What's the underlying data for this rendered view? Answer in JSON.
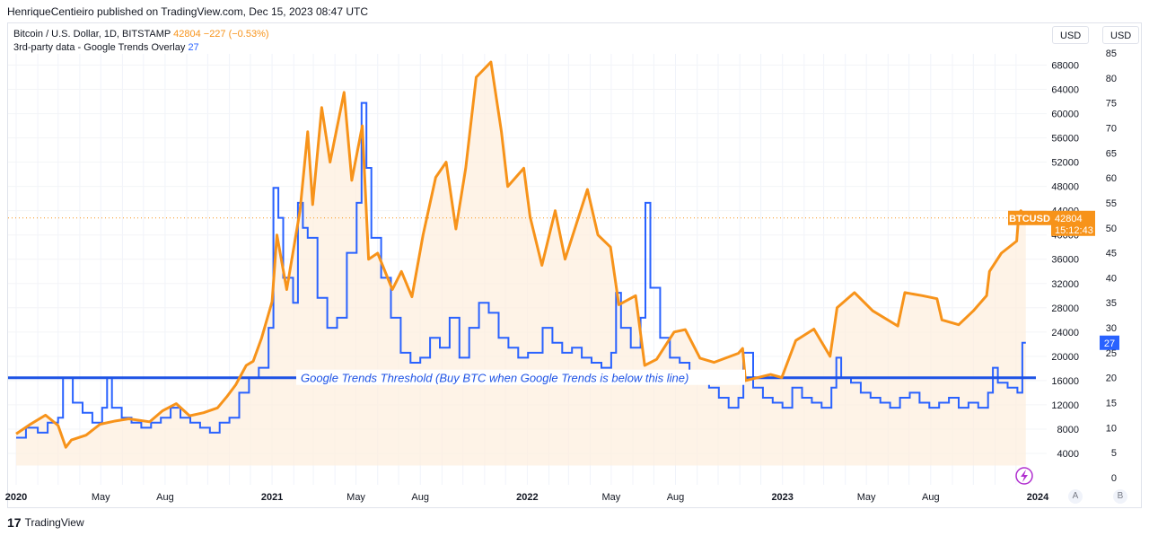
{
  "header": {
    "published": "HenriqueCentieiro published on TradingView.com, Dec 15, 2023 08:47 UTC"
  },
  "legend": {
    "main_prefix": "Bitcoin / U.S. Dollar, 1D, BITSTAMP",
    "main_price": "42804",
    "main_change": "−227 (−0.53%)",
    "overlay_name": "3rd-party data - Google Trends Overlay",
    "overlay_value": "27"
  },
  "units": {
    "left": "USD",
    "right": "USD"
  },
  "price_tag": {
    "symbol": "BTCUSD",
    "price": "42804",
    "countdown": "15:12:43"
  },
  "trends_tag": "27",
  "annotation": "Google Trends Threshold (Buy BTC when Google Trends is below this line)",
  "footer": {
    "brand": "TradingView"
  },
  "axis_buttons": {
    "a": "A",
    "b": "B"
  },
  "colors": {
    "btc": "#f7931a",
    "trends": "#2962ff",
    "fill": "#fdeedd"
  },
  "chart_data": {
    "type": "line",
    "price_axis": {
      "range": [
        0,
        70000
      ],
      "ticks": [
        "4000",
        "8000",
        "12000",
        "16000",
        "20000",
        "24000",
        "28000",
        "32000",
        "36000",
        "40000",
        "44000",
        "48000",
        "52000",
        "56000",
        "60000",
        "64000",
        "68000"
      ]
    },
    "trends_axis": {
      "range": [
        0,
        85
      ],
      "ticks": [
        "0",
        "5",
        "10",
        "15",
        "20",
        "25",
        "30",
        "35",
        "40",
        "45",
        "50",
        "55",
        "60",
        "65",
        "70",
        "75",
        "80",
        "85"
      ]
    },
    "x_labels": [
      "2020",
      "May",
      "Aug",
      "2021",
      "May",
      "Aug",
      "2022",
      "May",
      "Aug",
      "2023",
      "May",
      "Aug",
      "2024"
    ],
    "threshold": 20,
    "series": [
      {
        "name": "BTCUSD",
        "values": [
          [
            "2020-01-01",
            7200
          ],
          [
            "2020-01-20",
            8700
          ],
          [
            "2020-02-12",
            10300
          ],
          [
            "2020-03-01",
            8600
          ],
          [
            "2020-03-12",
            5000
          ],
          [
            "2020-03-20",
            6200
          ],
          [
            "2020-04-10",
            7000
          ],
          [
            "2020-04-30",
            8800
          ],
          [
            "2020-05-20",
            9300
          ],
          [
            "2020-06-10",
            9700
          ],
          [
            "2020-07-10",
            9200
          ],
          [
            "2020-07-28",
            11000
          ],
          [
            "2020-08-17",
            12200
          ],
          [
            "2020-09-05",
            10200
          ],
          [
            "2020-09-25",
            10700
          ],
          [
            "2020-10-15",
            11500
          ],
          [
            "2020-10-28",
            13300
          ],
          [
            "2020-11-10",
            15300
          ],
          [
            "2020-11-25",
            18500
          ],
          [
            "2020-12-05",
            19200
          ],
          [
            "2020-12-17",
            23000
          ],
          [
            "2021-01-01",
            29000
          ],
          [
            "2021-01-08",
            40000
          ],
          [
            "2021-01-22",
            31000
          ],
          [
            "2021-02-10",
            44000
          ],
          [
            "2021-02-21",
            57000
          ],
          [
            "2021-02-28",
            45000
          ],
          [
            "2021-03-13",
            61000
          ],
          [
            "2021-03-25",
            52000
          ],
          [
            "2021-04-14",
            63500
          ],
          [
            "2021-04-25",
            49000
          ],
          [
            "2021-05-10",
            58000
          ],
          [
            "2021-05-19",
            36000
          ],
          [
            "2021-06-01",
            37000
          ],
          [
            "2021-06-22",
            31000
          ],
          [
            "2021-07-05",
            34000
          ],
          [
            "2021-07-20",
            29800
          ],
          [
            "2021-08-05",
            40000
          ],
          [
            "2021-08-23",
            49500
          ],
          [
            "2021-09-07",
            52000
          ],
          [
            "2021-09-21",
            41000
          ],
          [
            "2021-10-05",
            51000
          ],
          [
            "2021-10-20",
            66000
          ],
          [
            "2021-11-10",
            68500
          ],
          [
            "2021-11-25",
            57000
          ],
          [
            "2021-12-04",
            48000
          ],
          [
            "2021-12-27",
            51000
          ],
          [
            "2022-01-05",
            43000
          ],
          [
            "2022-01-22",
            35000
          ],
          [
            "2022-02-10",
            44000
          ],
          [
            "2022-02-24",
            36000
          ],
          [
            "2022-03-28",
            47500
          ],
          [
            "2022-04-12",
            40000
          ],
          [
            "2022-04-30",
            38000
          ],
          [
            "2022-05-12",
            28500
          ],
          [
            "2022-06-05",
            30000
          ],
          [
            "2022-06-18",
            18500
          ],
          [
            "2022-07-05",
            19500
          ],
          [
            "2022-07-30",
            24000
          ],
          [
            "2022-08-15",
            24400
          ],
          [
            "2022-09-05",
            19700
          ],
          [
            "2022-09-25",
            19000
          ],
          [
            "2022-10-30",
            20500
          ],
          [
            "2022-11-05",
            21300
          ],
          [
            "2022-11-09",
            16000
          ],
          [
            "2022-12-15",
            17000
          ],
          [
            "2022-12-31",
            16500
          ],
          [
            "2023-01-20",
            22600
          ],
          [
            "2023-02-15",
            24500
          ],
          [
            "2023-03-10",
            20000
          ],
          [
            "2023-03-20",
            28000
          ],
          [
            "2023-04-14",
            30500
          ],
          [
            "2023-05-10",
            27500
          ],
          [
            "2023-06-15",
            25000
          ],
          [
            "2023-06-25",
            30500
          ],
          [
            "2023-07-20",
            30000
          ],
          [
            "2023-08-10",
            29500
          ],
          [
            "2023-08-17",
            26000
          ],
          [
            "2023-09-10",
            25200
          ],
          [
            "2023-10-01",
            27500
          ],
          [
            "2023-10-20",
            30000
          ],
          [
            "2023-10-24",
            34000
          ],
          [
            "2023-11-10",
            37000
          ],
          [
            "2023-12-02",
            39000
          ],
          [
            "2023-12-05",
            43500
          ],
          [
            "2023-12-08",
            44000
          ],
          [
            "2023-12-15",
            42804
          ]
        ]
      },
      {
        "name": "Google Trends",
        "values": [
          [
            "2020-01-01",
            8
          ],
          [
            "2020-01-15",
            10
          ],
          [
            "2020-02-01",
            9
          ],
          [
            "2020-02-15",
            11
          ],
          [
            "2020-03-01",
            12
          ],
          [
            "2020-03-08",
            20
          ],
          [
            "2020-03-22",
            15
          ],
          [
            "2020-04-05",
            13
          ],
          [
            "2020-04-19",
            11
          ],
          [
            "2020-05-03",
            14
          ],
          [
            "2020-05-10",
            20
          ],
          [
            "2020-05-17",
            14
          ],
          [
            "2020-05-31",
            12
          ],
          [
            "2020-06-14",
            11
          ],
          [
            "2020-06-28",
            10
          ],
          [
            "2020-07-12",
            11
          ],
          [
            "2020-07-26",
            12
          ],
          [
            "2020-08-09",
            14
          ],
          [
            "2020-08-23",
            12
          ],
          [
            "2020-09-06",
            11
          ],
          [
            "2020-09-20",
            10
          ],
          [
            "2020-10-04",
            9
          ],
          [
            "2020-10-18",
            11
          ],
          [
            "2020-11-01",
            12
          ],
          [
            "2020-11-15",
            17
          ],
          [
            "2020-11-29",
            20
          ],
          [
            "2020-12-13",
            22
          ],
          [
            "2020-12-27",
            30
          ],
          [
            "2021-01-03",
            58
          ],
          [
            "2021-01-10",
            52
          ],
          [
            "2021-01-17",
            40
          ],
          [
            "2021-01-31",
            35
          ],
          [
            "2021-02-07",
            55
          ],
          [
            "2021-02-14",
            50
          ],
          [
            "2021-02-21",
            48
          ],
          [
            "2021-03-07",
            36
          ],
          [
            "2021-03-21",
            30
          ],
          [
            "2021-04-04",
            32
          ],
          [
            "2021-04-18",
            45
          ],
          [
            "2021-05-02",
            55
          ],
          [
            "2021-05-09",
            75
          ],
          [
            "2021-05-16",
            62
          ],
          [
            "2021-05-23",
            48
          ],
          [
            "2021-06-06",
            40
          ],
          [
            "2021-06-20",
            32
          ],
          [
            "2021-07-04",
            25
          ],
          [
            "2021-07-18",
            23
          ],
          [
            "2021-08-01",
            24
          ],
          [
            "2021-08-15",
            28
          ],
          [
            "2021-08-29",
            26
          ],
          [
            "2021-09-12",
            32
          ],
          [
            "2021-09-26",
            24
          ],
          [
            "2021-10-10",
            30
          ],
          [
            "2021-10-24",
            35
          ],
          [
            "2021-11-07",
            33
          ],
          [
            "2021-11-21",
            28
          ],
          [
            "2021-12-05",
            26
          ],
          [
            "2021-12-19",
            24
          ],
          [
            "2022-01-02",
            25
          ],
          [
            "2022-01-23",
            30
          ],
          [
            "2022-02-06",
            27
          ],
          [
            "2022-02-20",
            25
          ],
          [
            "2022-03-06",
            26
          ],
          [
            "2022-03-20",
            24
          ],
          [
            "2022-04-03",
            23
          ],
          [
            "2022-04-17",
            22
          ],
          [
            "2022-05-01",
            25
          ],
          [
            "2022-05-08",
            37
          ],
          [
            "2022-05-15",
            30
          ],
          [
            "2022-05-29",
            26
          ],
          [
            "2022-06-12",
            32
          ],
          [
            "2022-06-19",
            55
          ],
          [
            "2022-06-26",
            38
          ],
          [
            "2022-07-10",
            28
          ],
          [
            "2022-07-24",
            24
          ],
          [
            "2022-08-07",
            23
          ],
          [
            "2022-08-21",
            21
          ],
          [
            "2022-09-04",
            20
          ],
          [
            "2022-09-18",
            18
          ],
          [
            "2022-10-02",
            16
          ],
          [
            "2022-10-16",
            14
          ],
          [
            "2022-10-30",
            16
          ],
          [
            "2022-11-06",
            25
          ],
          [
            "2022-11-20",
            18
          ],
          [
            "2022-12-04",
            16
          ],
          [
            "2022-12-18",
            15
          ],
          [
            "2023-01-01",
            14
          ],
          [
            "2023-01-15",
            18
          ],
          [
            "2023-01-29",
            16
          ],
          [
            "2023-02-12",
            15
          ],
          [
            "2023-02-26",
            14
          ],
          [
            "2023-03-12",
            18
          ],
          [
            "2023-03-19",
            24
          ],
          [
            "2023-03-26",
            20
          ],
          [
            "2023-04-09",
            19
          ],
          [
            "2023-04-23",
            17
          ],
          [
            "2023-05-07",
            16
          ],
          [
            "2023-05-21",
            15
          ],
          [
            "2023-06-04",
            14
          ],
          [
            "2023-06-18",
            16
          ],
          [
            "2023-07-02",
            17
          ],
          [
            "2023-07-16",
            15
          ],
          [
            "2023-07-30",
            14
          ],
          [
            "2023-08-13",
            15
          ],
          [
            "2023-08-27",
            16
          ],
          [
            "2023-09-10",
            14
          ],
          [
            "2023-09-24",
            15
          ],
          [
            "2023-10-08",
            14
          ],
          [
            "2023-10-22",
            17
          ],
          [
            "2023-10-29",
            22
          ],
          [
            "2023-11-05",
            19
          ],
          [
            "2023-11-19",
            18
          ],
          [
            "2023-12-03",
            17
          ],
          [
            "2023-12-10",
            27
          ],
          [
            "2023-12-15",
            27
          ]
        ]
      }
    ]
  }
}
